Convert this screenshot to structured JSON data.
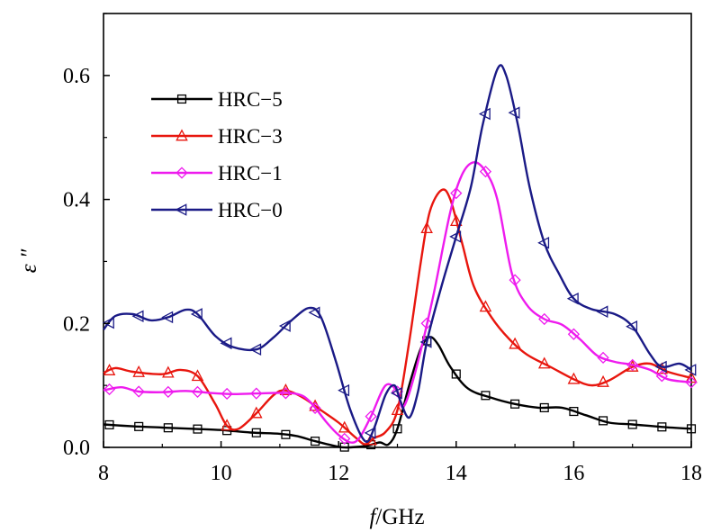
{
  "chart_data": {
    "type": "line",
    "xlabel_italic": "f",
    "xlabel_rest": "/GHz",
    "ylabel": "ε ″",
    "xlim": [
      8,
      18
    ],
    "ylim": [
      0,
      0.7
    ],
    "x_ticks": [
      "8",
      "10",
      "12",
      "14",
      "16",
      "18"
    ],
    "y_ticks": [
      "0.0",
      "0.2",
      "0.4",
      "0.6"
    ],
    "legend_position": "top-left",
    "grid": false,
    "series": [
      {
        "name": "HRC−5",
        "color": "#000000",
        "marker": "square",
        "points": [
          [
            8.0,
            0.037
          ],
          [
            8.5,
            0.034
          ],
          [
            9.0,
            0.032
          ],
          [
            9.5,
            0.03
          ],
          [
            10.0,
            0.028
          ],
          [
            10.5,
            0.024
          ],
          [
            11.0,
            0.022
          ],
          [
            11.3,
            0.018
          ],
          [
            11.6,
            0.01
          ],
          [
            12.0,
            0.001
          ],
          [
            12.2,
            0.0
          ],
          [
            12.5,
            0.003
          ],
          [
            12.7,
            0.008
          ],
          [
            12.85,
            0.005
          ],
          [
            13.0,
            0.03
          ],
          [
            13.2,
            0.1
          ],
          [
            13.4,
            0.16
          ],
          [
            13.55,
            0.178
          ],
          [
            13.7,
            0.165
          ],
          [
            13.9,
            0.13
          ],
          [
            14.2,
            0.095
          ],
          [
            14.6,
            0.08
          ],
          [
            15.0,
            0.07
          ],
          [
            15.4,
            0.064
          ],
          [
            15.8,
            0.064
          ],
          [
            16.2,
            0.052
          ],
          [
            16.6,
            0.04
          ],
          [
            17.0,
            0.037
          ],
          [
            17.5,
            0.033
          ],
          [
            18.0,
            0.03
          ]
        ],
        "marker_x": [
          8.1,
          8.6,
          9.1,
          9.6,
          10.1,
          10.6,
          11.1,
          11.6,
          12.1,
          12.55,
          13.0,
          13.5,
          14.0,
          14.5,
          15.0,
          15.5,
          16.0,
          16.5,
          17.0,
          17.5,
          18.0
        ]
      },
      {
        "name": "HRC−3",
        "color": "#e8160e",
        "marker": "triangle-up",
        "points": [
          [
            8.0,
            0.12
          ],
          [
            8.2,
            0.128
          ],
          [
            8.5,
            0.122
          ],
          [
            9.0,
            0.118
          ],
          [
            9.3,
            0.125
          ],
          [
            9.6,
            0.115
          ],
          [
            9.9,
            0.07
          ],
          [
            10.1,
            0.035
          ],
          [
            10.3,
            0.03
          ],
          [
            10.6,
            0.055
          ],
          [
            10.9,
            0.085
          ],
          [
            11.1,
            0.092
          ],
          [
            11.4,
            0.08
          ],
          [
            11.7,
            0.06
          ],
          [
            12.0,
            0.04
          ],
          [
            12.3,
            0.015
          ],
          [
            12.45,
            0.005
          ],
          [
            12.6,
            0.015
          ],
          [
            12.8,
            0.025
          ],
          [
            13.0,
            0.06
          ],
          [
            13.2,
            0.17
          ],
          [
            13.4,
            0.3
          ],
          [
            13.55,
            0.38
          ],
          [
            13.75,
            0.415
          ],
          [
            13.9,
            0.4
          ],
          [
            14.1,
            0.33
          ],
          [
            14.3,
            0.26
          ],
          [
            14.6,
            0.21
          ],
          [
            14.9,
            0.175
          ],
          [
            15.2,
            0.15
          ],
          [
            15.6,
            0.13
          ],
          [
            16.0,
            0.11
          ],
          [
            16.3,
            0.1
          ],
          [
            16.6,
            0.108
          ],
          [
            17.0,
            0.13
          ],
          [
            17.3,
            0.135
          ],
          [
            17.6,
            0.122
          ],
          [
            18.0,
            0.112
          ]
        ],
        "marker_x": [
          8.1,
          8.6,
          9.1,
          9.6,
          10.1,
          10.6,
          11.1,
          11.6,
          12.1,
          12.55,
          13.0,
          13.5,
          14.0,
          14.5,
          15.0,
          15.5,
          16.0,
          16.5,
          17.0,
          17.5,
          18.0
        ]
      },
      {
        "name": "HRC−1",
        "color": "#ee1bee",
        "marker": "diamond",
        "points": [
          [
            8.0,
            0.092
          ],
          [
            8.3,
            0.097
          ],
          [
            8.6,
            0.09
          ],
          [
            9.0,
            0.089
          ],
          [
            9.4,
            0.091
          ],
          [
            9.8,
            0.088
          ],
          [
            10.2,
            0.086
          ],
          [
            10.6,
            0.087
          ],
          [
            11.0,
            0.088
          ],
          [
            11.3,
            0.086
          ],
          [
            11.5,
            0.075
          ],
          [
            11.8,
            0.04
          ],
          [
            12.0,
            0.02
          ],
          [
            12.2,
            0.008
          ],
          [
            12.35,
            0.015
          ],
          [
            12.55,
            0.05
          ],
          [
            12.8,
            0.1
          ],
          [
            13.0,
            0.09
          ],
          [
            13.1,
            0.065
          ],
          [
            13.3,
            0.12
          ],
          [
            13.6,
            0.24
          ],
          [
            13.9,
            0.38
          ],
          [
            14.1,
            0.44
          ],
          [
            14.3,
            0.46
          ],
          [
            14.5,
            0.445
          ],
          [
            14.7,
            0.4
          ],
          [
            14.95,
            0.28
          ],
          [
            15.2,
            0.23
          ],
          [
            15.5,
            0.207
          ],
          [
            15.8,
            0.198
          ],
          [
            16.1,
            0.175
          ],
          [
            16.4,
            0.148
          ],
          [
            16.7,
            0.138
          ],
          [
            17.0,
            0.133
          ],
          [
            17.3,
            0.125
          ],
          [
            17.6,
            0.11
          ],
          [
            18.0,
            0.105
          ]
        ],
        "marker_x": [
          8.1,
          8.6,
          9.1,
          9.6,
          10.1,
          10.6,
          11.1,
          11.6,
          12.1,
          12.55,
          13.0,
          13.5,
          14.0,
          14.5,
          15.0,
          15.5,
          16.0,
          16.5,
          17.0,
          17.5,
          18.0
        ]
      },
      {
        "name": "HRC−0",
        "color": "#1a1a86",
        "marker": "triangle-left",
        "points": [
          [
            8.0,
            0.19
          ],
          [
            8.2,
            0.212
          ],
          [
            8.5,
            0.215
          ],
          [
            8.8,
            0.205
          ],
          [
            9.1,
            0.21
          ],
          [
            9.4,
            0.222
          ],
          [
            9.6,
            0.215
          ],
          [
            9.9,
            0.18
          ],
          [
            10.2,
            0.162
          ],
          [
            10.6,
            0.158
          ],
          [
            10.9,
            0.178
          ],
          [
            11.2,
            0.205
          ],
          [
            11.5,
            0.225
          ],
          [
            11.7,
            0.21
          ],
          [
            11.95,
            0.14
          ],
          [
            12.2,
            0.06
          ],
          [
            12.45,
            0.01
          ],
          [
            12.6,
            0.03
          ],
          [
            12.8,
            0.085
          ],
          [
            12.95,
            0.1
          ],
          [
            13.05,
            0.075
          ],
          [
            13.2,
            0.048
          ],
          [
            13.35,
            0.09
          ],
          [
            13.5,
            0.17
          ],
          [
            13.75,
            0.26
          ],
          [
            14.0,
            0.34
          ],
          [
            14.25,
            0.42
          ],
          [
            14.45,
            0.52
          ],
          [
            14.7,
            0.61
          ],
          [
            14.85,
            0.6
          ],
          [
            15.05,
            0.52
          ],
          [
            15.25,
            0.42
          ],
          [
            15.5,
            0.33
          ],
          [
            15.75,
            0.28
          ],
          [
            16.0,
            0.24
          ],
          [
            16.3,
            0.223
          ],
          [
            16.7,
            0.215
          ],
          [
            17.0,
            0.195
          ],
          [
            17.3,
            0.15
          ],
          [
            17.5,
            0.13
          ],
          [
            17.8,
            0.135
          ],
          [
            18.0,
            0.125
          ]
        ],
        "marker_x": [
          8.1,
          8.6,
          9.1,
          9.6,
          10.1,
          10.6,
          11.1,
          11.6,
          12.1,
          12.55,
          13.0,
          13.5,
          14.0,
          14.5,
          15.0,
          15.5,
          16.0,
          16.5,
          17.0,
          17.5,
          18.0
        ]
      }
    ]
  }
}
